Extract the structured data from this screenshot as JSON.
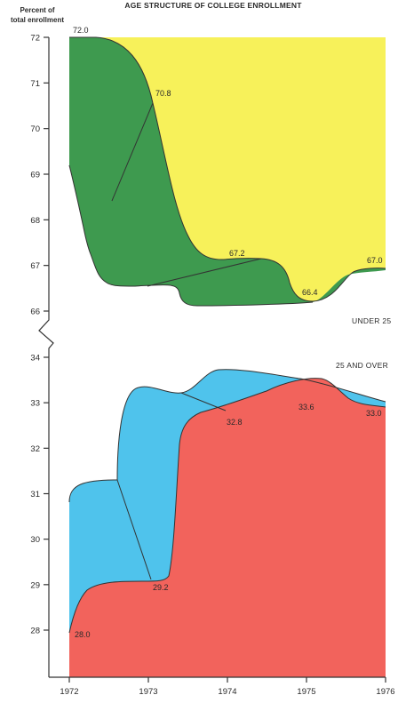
{
  "chart_data": [
    {
      "type": "area",
      "title": "AGE STRUCTURE OF COLLEGE ENROLLMENT",
      "ylabel": "Percent of total enrollment",
      "panel_label": "UNDER 25",
      "x": [
        1972,
        1973,
        1974,
        1975,
        1976
      ],
      "x_tick_labels": [
        "1972",
        "1973",
        "1974",
        "1975",
        "1976"
      ],
      "ylim": [
        66,
        72
      ],
      "y_ticks": [
        66,
        67,
        68,
        69,
        70,
        71,
        72
      ],
      "y_tick_labels": [
        "66",
        "67",
        "68",
        "69",
        "70",
        "71",
        "72"
      ],
      "values": [
        72.0,
        70.8,
        67.2,
        66.4,
        67.0
      ],
      "data_labels": [
        "72.0",
        "70.8",
        "67.2",
        "66.4",
        "67.0"
      ],
      "colors": {
        "fill": "#f7f15a",
        "band": "#3e9a4f"
      }
    },
    {
      "type": "area",
      "panel_label": "25 AND OVER",
      "x": [
        1972,
        1973,
        1974,
        1975,
        1976
      ],
      "ylim": [
        28,
        34
      ],
      "y_ticks": [
        28,
        29,
        30,
        31,
        32,
        33,
        34
      ],
      "y_tick_labels": [
        "28",
        "29",
        "30",
        "31",
        "32",
        "33",
        "34"
      ],
      "values": [
        28.0,
        29.2,
        32.8,
        33.6,
        33.0
      ],
      "data_labels": [
        "28.0",
        "29.2",
        "32.8",
        "33.6",
        "33.0"
      ],
      "colors": {
        "fill": "#f2635c",
        "band": "#4fc3ec"
      }
    }
  ]
}
